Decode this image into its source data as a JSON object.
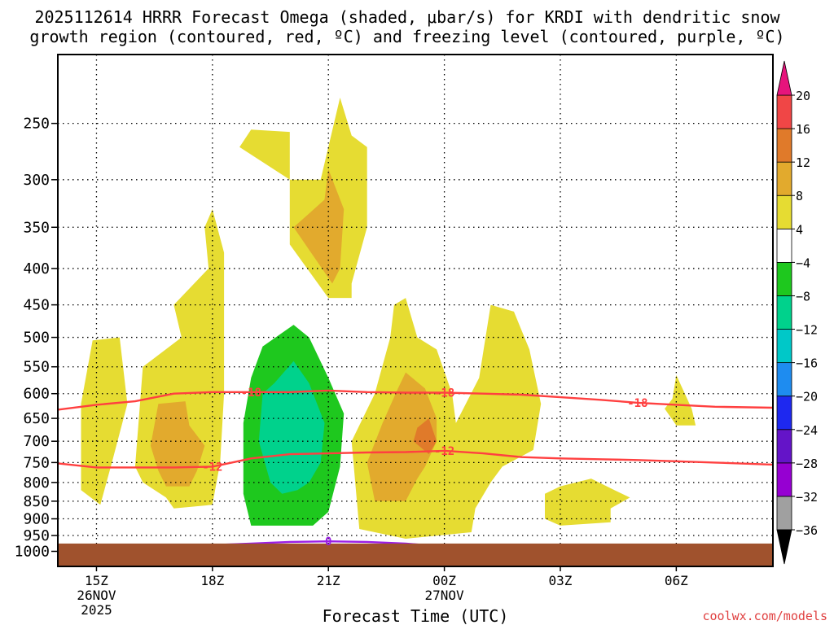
{
  "chart_data": {
    "type": "heatmap",
    "title_line1": "2025112614 HRRR Forecast Omega (shaded, μbar/s) for KRDI with dendritic snow",
    "title_line2": "growth region (contoured, red, ºC) and freezing level (contoured, purple, ºC)",
    "xlabel": "Forecast Time (UTC)",
    "ylabel": "",
    "credit": "coolwx.com/models",
    "x_unit": "hours from 2025-11-26 15Z",
    "xlim": [
      -1.0,
      17.5
    ],
    "ylim_pressure_hPa": [
      1050,
      200
    ],
    "y_ticks": [
      250,
      300,
      350,
      400,
      450,
      500,
      550,
      600,
      650,
      700,
      750,
      800,
      850,
      900,
      950,
      1000
    ],
    "x_ticks": [
      {
        "x": 0,
        "label": "15Z",
        "sub1": "26NOV",
        "sub2": "2025"
      },
      {
        "x": 3,
        "label": "18Z"
      },
      {
        "x": 6,
        "label": "21Z"
      },
      {
        "x": 9,
        "label": "00Z",
        "sub1": "27NOV"
      },
      {
        "x": 12,
        "label": "03Z"
      },
      {
        "x": 15,
        "label": "06Z"
      }
    ],
    "ground_below_hPa": 975,
    "ground_color": "#a0522d",
    "omega_regions": [
      {
        "level": "4 to 8",
        "color": "#e6dc32",
        "points": [
          [
            -0.4,
            620
          ],
          [
            -0.1,
            505
          ],
          [
            0.6,
            500
          ],
          [
            0.8,
            620
          ],
          [
            0.4,
            750
          ],
          [
            0.1,
            860
          ],
          [
            -0.4,
            820
          ]
        ]
      },
      {
        "level": "4 to 8",
        "color": "#e6dc32",
        "points": [
          [
            1.0,
            760
          ],
          [
            1.2,
            550
          ],
          [
            2.2,
            500
          ],
          [
            2.0,
            450
          ],
          [
            2.9,
            400
          ],
          [
            2.8,
            350
          ],
          [
            3.0,
            330
          ],
          [
            3.3,
            380
          ],
          [
            3.3,
            600
          ],
          [
            3.2,
            750
          ],
          [
            3.0,
            860
          ],
          [
            2.0,
            870
          ],
          [
            1.8,
            840
          ],
          [
            1.2,
            800
          ]
        ]
      },
      {
        "level": "4 to 8",
        "color": "#e6dc32",
        "points": [
          [
            3.7,
            270
          ],
          [
            4.0,
            255
          ],
          [
            5.0,
            257
          ],
          [
            5.0,
            300
          ],
          [
            5.8,
            300
          ],
          [
            6.3,
            230
          ],
          [
            6.6,
            260
          ],
          [
            7.0,
            270
          ],
          [
            7.0,
            350
          ],
          [
            6.6,
            420
          ],
          [
            6.6,
            440
          ],
          [
            6.0,
            440
          ],
          [
            5.0,
            370
          ],
          [
            5.0,
            300
          ]
        ]
      },
      {
        "level": "4 to 8",
        "color": "#e6dc32",
        "points": [
          [
            6.8,
            930
          ],
          [
            6.6,
            700
          ],
          [
            7.2,
            600
          ],
          [
            7.6,
            500
          ],
          [
            7.7,
            450
          ],
          [
            8.0,
            440
          ],
          [
            8.3,
            500
          ],
          [
            8.8,
            520
          ],
          [
            9.2,
            600
          ],
          [
            9.3,
            660
          ],
          [
            9.9,
            570
          ],
          [
            10.2,
            450
          ],
          [
            10.8,
            460
          ],
          [
            11.2,
            520
          ],
          [
            11.5,
            620
          ],
          [
            11.3,
            720
          ],
          [
            10.5,
            760
          ],
          [
            10.2,
            800
          ],
          [
            9.8,
            870
          ],
          [
            9.7,
            940
          ],
          [
            8.0,
            960
          ]
        ]
      },
      {
        "level": "4 to 8",
        "color": "#e6dc32",
        "points": [
          [
            12.0,
            810
          ],
          [
            12.8,
            790
          ],
          [
            13.4,
            820
          ],
          [
            13.8,
            840
          ],
          [
            13.3,
            870
          ],
          [
            13.3,
            910
          ],
          [
            12.0,
            920
          ],
          [
            11.6,
            900
          ],
          [
            11.6,
            830
          ]
        ]
      },
      {
        "level": "4 to 8",
        "color": "#e6dc32",
        "points": [
          [
            14.7,
            630
          ],
          [
            14.9,
            610
          ],
          [
            15.0,
            565
          ],
          [
            15.4,
            630
          ],
          [
            15.5,
            665
          ],
          [
            15.0,
            665
          ]
        ]
      },
      {
        "level": "8 to 12",
        "color": "#e2aa2d",
        "points": [
          [
            1.6,
            620
          ],
          [
            2.3,
            615
          ],
          [
            2.4,
            665
          ],
          [
            2.8,
            710
          ],
          [
            2.6,
            770
          ],
          [
            2.4,
            810
          ],
          [
            1.8,
            810
          ],
          [
            1.6,
            770
          ],
          [
            1.4,
            710
          ]
        ]
      },
      {
        "level": "8 to 12",
        "color": "#e2aa2d",
        "points": [
          [
            5.1,
            350
          ],
          [
            5.9,
            320
          ],
          [
            6.0,
            290
          ],
          [
            6.4,
            330
          ],
          [
            6.3,
            400
          ],
          [
            6.1,
            420
          ]
        ]
      },
      {
        "level": "8 to 12",
        "color": "#e2aa2d",
        "points": [
          [
            7.2,
            850
          ],
          [
            7.0,
            750
          ],
          [
            7.4,
            660
          ],
          [
            7.8,
            590
          ],
          [
            8.0,
            560
          ],
          [
            8.5,
            590
          ],
          [
            8.8,
            650
          ],
          [
            8.8,
            700
          ],
          [
            8.5,
            760
          ],
          [
            8.3,
            790
          ],
          [
            8.0,
            850
          ]
        ]
      },
      {
        "level": "12 to 16",
        "color": "#e07a2a",
        "points": [
          [
            8.2,
            700
          ],
          [
            8.3,
            670
          ],
          [
            8.6,
            650
          ],
          [
            8.8,
            700
          ],
          [
            8.6,
            730
          ]
        ]
      },
      {
        "level": "-4 to -8",
        "color": "#1ec81e",
        "points": [
          [
            3.8,
            830
          ],
          [
            3.8,
            660
          ],
          [
            4.0,
            570
          ],
          [
            4.3,
            515
          ],
          [
            5.1,
            480
          ],
          [
            5.5,
            500
          ],
          [
            6.0,
            570
          ],
          [
            6.4,
            640
          ],
          [
            6.3,
            760
          ],
          [
            6.0,
            880
          ],
          [
            5.6,
            920
          ],
          [
            4.0,
            920
          ]
        ]
      },
      {
        "level": "-8 to -12",
        "color": "#00d28c",
        "points": [
          [
            4.2,
            700
          ],
          [
            4.3,
            600
          ],
          [
            4.6,
            580
          ],
          [
            5.1,
            540
          ],
          [
            5.5,
            580
          ],
          [
            5.9,
            660
          ],
          [
            5.8,
            750
          ],
          [
            5.5,
            800
          ],
          [
            5.2,
            820
          ],
          [
            4.8,
            830
          ],
          [
            4.5,
            800
          ]
        ]
      }
    ],
    "contours": [
      {
        "name": "-18 ºC",
        "label": "-18",
        "color": "#ff4040",
        "points": [
          [
            -1,
            632
          ],
          [
            0,
            622
          ],
          [
            1,
            615
          ],
          [
            2,
            600
          ],
          [
            3,
            597
          ],
          [
            4,
            597
          ],
          [
            5,
            597
          ],
          [
            6,
            594
          ],
          [
            7,
            597
          ],
          [
            8,
            598
          ],
          [
            9,
            598
          ],
          [
            10,
            600
          ],
          [
            11,
            602
          ],
          [
            12,
            607
          ],
          [
            13,
            612
          ],
          [
            14,
            618
          ],
          [
            15,
            622
          ],
          [
            16,
            626
          ],
          [
            17.5,
            628
          ]
        ],
        "label_x": [
          4.0,
          9.0,
          14.0
        ]
      },
      {
        "name": "-12 ºC",
        "label": "-12",
        "color": "#ff4040",
        "points": [
          [
            -1,
            752
          ],
          [
            0,
            762
          ],
          [
            1,
            762
          ],
          [
            2,
            762
          ],
          [
            3,
            760
          ],
          [
            3.5,
            750
          ],
          [
            4,
            740
          ],
          [
            5,
            730
          ],
          [
            6,
            728
          ],
          [
            7,
            726
          ],
          [
            8,
            725
          ],
          [
            9,
            722
          ],
          [
            10,
            728
          ],
          [
            11,
            737
          ],
          [
            12,
            740
          ],
          [
            13,
            742
          ],
          [
            14,
            744
          ],
          [
            15,
            747
          ],
          [
            16,
            750
          ],
          [
            17.5,
            755
          ]
        ],
        "label_x": [
          3.0,
          9.0
        ]
      },
      {
        "name": "0 ºC",
        "label": "0",
        "color": "#9b1ee6",
        "points": [
          [
            2.3,
            985
          ],
          [
            3,
            980
          ],
          [
            4,
            975
          ],
          [
            5,
            970
          ],
          [
            6,
            968
          ],
          [
            7,
            970
          ],
          [
            8,
            975
          ],
          [
            9,
            985
          ]
        ],
        "label_x": [
          6.0
        ]
      }
    ],
    "colorbar": {
      "levels": [
        -36,
        -32,
        -28,
        -24,
        -20,
        -16,
        -12,
        -8,
        -4,
        4,
        8,
        12,
        16,
        20
      ],
      "label_levels": [
        "−36",
        "−32",
        "−28",
        "−24",
        "−20",
        "−16",
        "−12",
        "−8",
        "−4",
        "4",
        "8",
        "12",
        "16",
        "20"
      ],
      "colors": [
        "#a0a0a0",
        "#9600d2",
        "#6414c8",
        "#1e28f0",
        "#1e8cf0",
        "#00c8c8",
        "#00d28c",
        "#1ec81e",
        "#ffffff",
        "#e6dc32",
        "#e2aa2d",
        "#e07a2a",
        "#f04646"
      ],
      "under_color": "#000000",
      "over_color": "#e6147c"
    }
  }
}
